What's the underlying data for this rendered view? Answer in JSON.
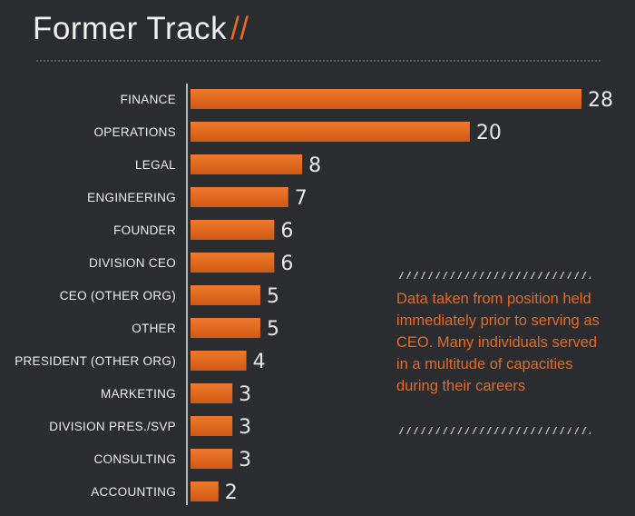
{
  "header": {
    "title": "Former Track",
    "title_accent": "//"
  },
  "note": {
    "text": "Data taken from position held immediately prior to serving as CEO. Many individuals served in a multitude of capacities during their careers"
  },
  "colors": {
    "background": "#2b2c30",
    "bar": "#e06a1f",
    "accent": "#e8691f",
    "text": "#f0f0f0"
  },
  "chart_data": {
    "type": "bar",
    "orientation": "horizontal",
    "title": "Former Track",
    "categories": [
      "FINANCE",
      "OPERATIONS",
      "LEGAL",
      "ENGINEERING",
      "FOUNDER",
      "DIVISION CEO",
      "CEO (OTHER ORG)",
      "OTHER",
      "PRESIDENT (OTHER ORG)",
      "MARKETING",
      "DIVISION PRES./SVP",
      "CONSULTING",
      "ACCOUNTING"
    ],
    "values": [
      28,
      20,
      8,
      7,
      6,
      6,
      5,
      5,
      4,
      3,
      3,
      3,
      2
    ],
    "xlabel": "",
    "ylabel": "",
    "xlim": [
      0,
      28
    ],
    "data_labels": true,
    "grid": false,
    "legend": "none"
  }
}
